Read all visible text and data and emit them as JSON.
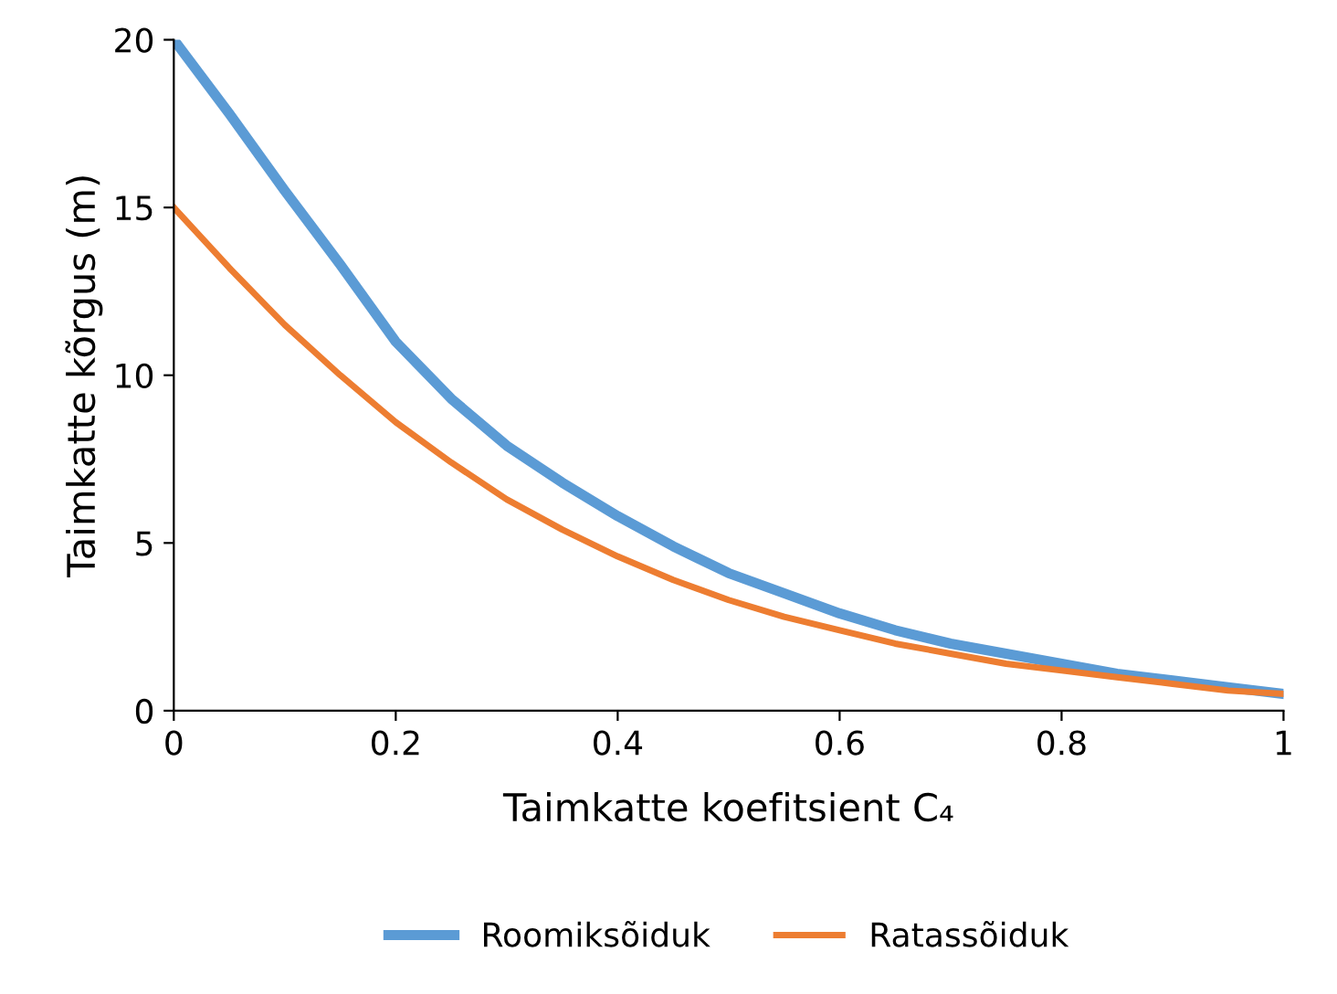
{
  "chart_data": {
    "type": "line",
    "xlabel": "Taimkatte koefitsient C₄",
    "ylabel": "Taimkatte kõrgus (m)",
    "x": [
      0,
      0.05,
      0.1,
      0.15,
      0.2,
      0.25,
      0.3,
      0.35,
      0.4,
      0.45,
      0.5,
      0.55,
      0.6,
      0.65,
      0.7,
      0.75,
      0.8,
      0.85,
      0.9,
      0.95,
      1
    ],
    "series": [
      {
        "name": "Roomiksõiduk",
        "color": "#5b9bd5",
        "values": [
          20,
          17.8,
          15.5,
          13.3,
          11.0,
          9.3,
          7.9,
          6.8,
          5.8,
          4.9,
          4.1,
          3.5,
          2.9,
          2.4,
          2.0,
          1.7,
          1.4,
          1.1,
          0.9,
          0.7,
          0.5
        ]
      },
      {
        "name": "Ratassõiduk",
        "color": "#ed7d31",
        "values": [
          15,
          13.2,
          11.5,
          10.0,
          8.6,
          7.4,
          6.3,
          5.4,
          4.6,
          3.9,
          3.3,
          2.8,
          2.4,
          2.0,
          1.7,
          1.4,
          1.2,
          1.0,
          0.8,
          0.6,
          0.5
        ]
      }
    ],
    "xlim": [
      0,
      1
    ],
    "xticks": [
      0,
      0.2,
      0.4,
      0.6,
      0.8,
      1
    ],
    "ylim": [
      0,
      20
    ],
    "yticks": [
      0,
      5,
      10,
      15,
      20
    ],
    "grid": false,
    "legend": "bottom",
    "marker": "none",
    "line_style": "solid"
  }
}
